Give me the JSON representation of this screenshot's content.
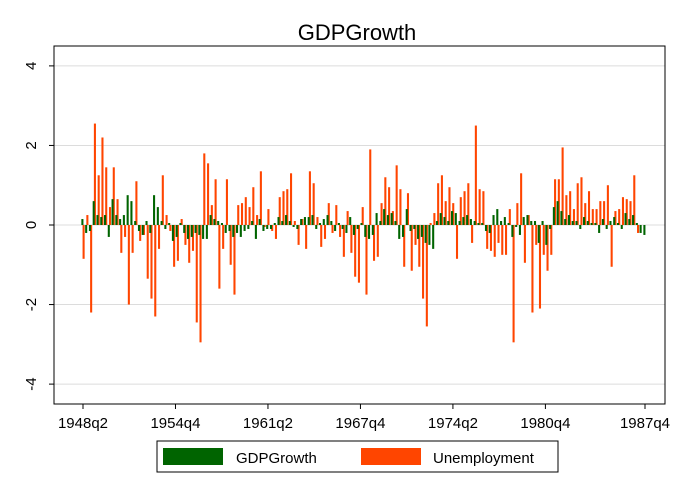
{
  "chart_data": {
    "type": "bar",
    "title": "GDPGrowth",
    "xlabel": "",
    "ylabel": "",
    "ylim": [
      -4.5,
      4.5
    ],
    "yticks": [
      -4,
      -2,
      0,
      2,
      4
    ],
    "ytick_labels": [
      "-4",
      "-2",
      "0",
      "2",
      "4"
    ],
    "xtick_labels": [
      "1948q2",
      "1954q4",
      "1961q2",
      "1967q4",
      "1974q2",
      "1980q4",
      "1987q4"
    ],
    "grid": true,
    "legend_position": "bottom",
    "start_quarter": "1948q2",
    "end_quarter": "1987q4",
    "series": [
      {
        "name": "GDPGrowth",
        "color": "#006400",
        "values": [
          0.15,
          -0.2,
          -0.15,
          0.6,
          0.25,
          0.2,
          0.25,
          -0.3,
          0.65,
          0.25,
          0.15,
          0.25,
          0.75,
          0.6,
          0.1,
          -0.15,
          -0.25,
          0.1,
          -0.2,
          0.75,
          0.45,
          0.1,
          -0.1,
          0.05,
          -0.4,
          -0.3,
          0.05,
          -0.2,
          -0.35,
          -0.3,
          -0.2,
          -0.25,
          -0.35,
          -0.35,
          0.25,
          0.15,
          0.1,
          0.05,
          -0.2,
          -0.15,
          -0.3,
          -0.2,
          -0.3,
          -0.15,
          -0.1,
          0.1,
          -0.35,
          0.15,
          -0.15,
          -0.1,
          -0.1,
          0.05,
          0.2,
          0.1,
          0.25,
          0.1,
          -0.05,
          -0.1,
          0.15,
          0.2,
          0.2,
          0.25,
          -0.1,
          0.05,
          0.15,
          0.25,
          0.1,
          -0.15,
          0.05,
          -0.1,
          -0.2,
          0.2,
          -0.25,
          -0.1,
          0.05,
          -0.3,
          -0.35,
          -0.25,
          0.3,
          0.1,
          0.4,
          0.25,
          0.3,
          0.1,
          -0.35,
          -0.3,
          0.4,
          -0.15,
          -0.1,
          -0.35,
          -0.3,
          -0.45,
          -0.5,
          -0.6,
          0.1,
          0.3,
          0.2,
          0.1,
          0.35,
          0.3,
          0.1,
          0.2,
          0.25,
          0.15,
          0.1,
          0.05,
          0.05,
          -0.15,
          -0.2,
          0.25,
          0.4,
          0.1,
          0.2,
          0.05,
          -0.3,
          -0.05,
          -0.25,
          0.2,
          0.25,
          0.1,
          0.1,
          -0.45,
          0.1,
          -0.5,
          -0.1,
          0.45,
          0.6,
          0.35,
          0.15,
          0.25,
          0.1,
          0.1,
          -0.1,
          0.2,
          0.1,
          0.05,
          0.05,
          -0.2,
          0.15,
          -0.1,
          0.1,
          0.2,
          0.05,
          -0.1,
          0.3,
          0.15,
          0.25,
          0.05,
          -0.2,
          -0.25
        ]
      },
      {
        "name": "Unemployment",
        "color": "#ff4500",
        "values": [
          -0.85,
          0.25,
          -2.2,
          2.55,
          1.25,
          2.2,
          1.45,
          0.45,
          1.45,
          0.65,
          -0.7,
          -0.3,
          -2.0,
          -0.7,
          1.1,
          -0.4,
          -0.25,
          -1.35,
          -1.85,
          -2.3,
          -0.6,
          1.25,
          0.25,
          -0.15,
          -1.05,
          -0.9,
          0.15,
          -0.5,
          -0.95,
          -0.65,
          -2.45,
          -2.95,
          1.8,
          1.55,
          0.5,
          1.15,
          -1.6,
          -0.6,
          1.15,
          -1.0,
          -1.75,
          0.5,
          0.55,
          0.7,
          0.45,
          0.95,
          0.25,
          1.35,
          -0.05,
          0.4,
          -0.15,
          -0.35,
          0.7,
          0.85,
          0.9,
          1.3,
          0.1,
          -0.5,
          0.15,
          -0.6,
          1.35,
          1.05,
          0.2,
          -0.55,
          -0.35,
          0.55,
          -0.2,
          0.5,
          -0.3,
          -0.8,
          0.35,
          -0.7,
          -1.3,
          -1.45,
          0.45,
          -1.75,
          1.9,
          -0.9,
          -0.8,
          0.55,
          1.2,
          0.95,
          0.35,
          1.5,
          0.9,
          -1.05,
          0.8,
          -1.15,
          -0.5,
          -1.05,
          -1.85,
          -2.55,
          0.05,
          0.3,
          1.05,
          1.25,
          0.6,
          0.95,
          0.55,
          -0.85,
          0.7,
          0.85,
          1.05,
          -0.45,
          2.5,
          0.9,
          0.85,
          -0.6,
          -0.65,
          -0.8,
          -0.45,
          -0.75,
          -0.75,
          0.4,
          -2.95,
          0.55,
          1.3,
          -0.95,
          0.25,
          -2.2,
          -0.5,
          -2.1,
          -0.75,
          -1.15,
          -0.75,
          1.15,
          1.15,
          1.95,
          0.75,
          0.85,
          0.4,
          1.05,
          1.2,
          0.55,
          0.85,
          0.4,
          0.4,
          0.6,
          0.6,
          1.0,
          -1.05,
          0.35,
          0.4,
          0.7,
          0.65,
          0.6,
          1.25,
          -0.2
        ]
      }
    ]
  }
}
